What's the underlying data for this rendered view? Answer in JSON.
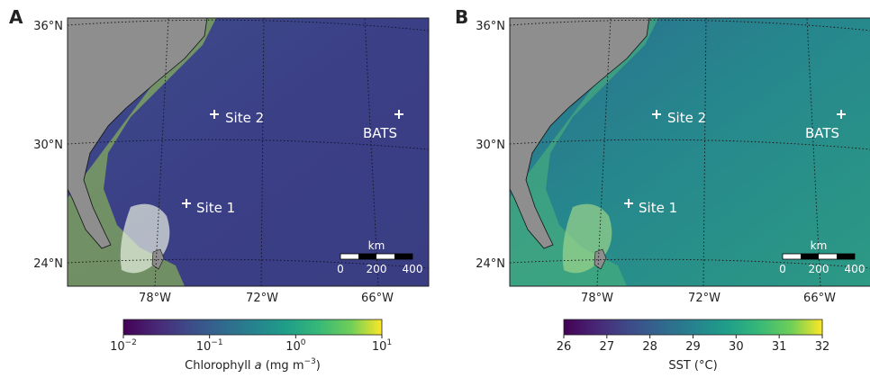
{
  "panels": [
    {
      "label": "A",
      "lat_labels": [
        "36°N",
        "30°N",
        "24°N"
      ],
      "lon_labels": [
        "78°W",
        "72°W",
        "66°W"
      ],
      "sites": [
        "Site 2",
        "BATS",
        "Site 1"
      ],
      "scale": {
        "unit": "km",
        "ticks": [
          "0",
          "200",
          "400"
        ]
      },
      "colorbar": {
        "ticks": [
          {
            "base": "10",
            "exp": "−2"
          },
          {
            "base": "10",
            "exp": "−1"
          },
          {
            "base": "10",
            "exp": "0"
          },
          {
            "base": "10",
            "exp": "1"
          }
        ],
        "label": [
          "Chlorophyll ",
          "a",
          " (mg m",
          "−3",
          ")"
        ]
      }
    },
    {
      "label": "B",
      "lat_labels": [
        "36°N",
        "30°N",
        "24°N"
      ],
      "lon_labels": [
        "78°W",
        "72°W",
        "66°W"
      ],
      "sites": [
        "Site 2",
        "BATS",
        "Site 1"
      ],
      "scale": {
        "unit": "km",
        "ticks": [
          "0",
          "200",
          "400"
        ]
      },
      "colorbar": {
        "ticks": [
          "26",
          "27",
          "28",
          "29",
          "30",
          "31",
          "32"
        ],
        "label": [
          "SST (°C)"
        ]
      }
    }
  ]
}
